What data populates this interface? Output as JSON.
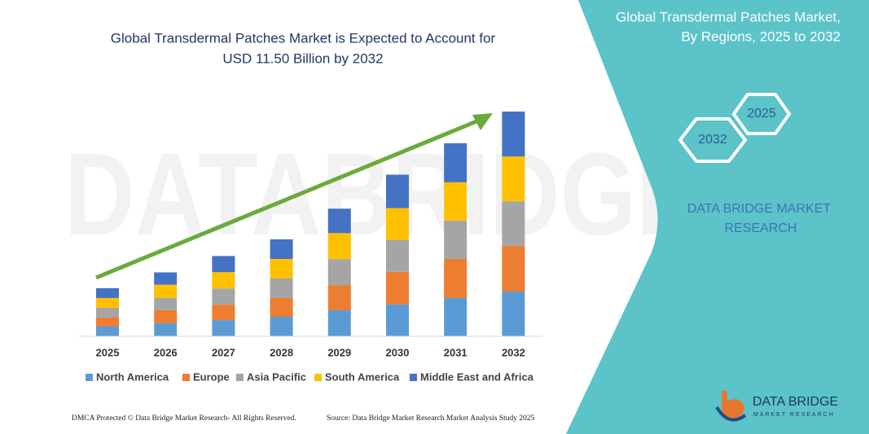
{
  "chart_data": {
    "type": "stacked-bar",
    "title": [
      "Global Transdermal Patches Market is Expected to Account for",
      "USD 11.50 Billion by 2032"
    ],
    "categories": [
      "2025",
      "2026",
      "2027",
      "2028",
      "2029",
      "2030",
      "2031",
      "2032"
    ],
    "series": [
      {
        "name": "North America",
        "color": "#5b9bd5",
        "values": [
          0.5,
          0.67,
          0.83,
          1.0,
          1.33,
          1.63,
          1.96,
          2.29
        ]
      },
      {
        "name": "Europe",
        "color": "#ed7d31",
        "values": [
          0.46,
          0.67,
          0.79,
          0.96,
          1.29,
          1.67,
          2.0,
          2.33
        ]
      },
      {
        "name": "Asia Pacific",
        "color": "#a5a5a5",
        "values": [
          0.5,
          0.63,
          0.83,
          1.0,
          1.33,
          1.63,
          1.96,
          2.29
        ]
      },
      {
        "name": "South America",
        "color": "#ffc000",
        "values": [
          0.5,
          0.67,
          0.83,
          1.0,
          1.33,
          1.63,
          1.96,
          2.29
        ]
      },
      {
        "name": "Middle East and Africa",
        "color": "#4472c4",
        "values": [
          0.5,
          0.63,
          0.83,
          1.0,
          1.25,
          1.71,
          2.0,
          2.3
        ]
      }
    ]
  },
  "panel": {
    "title": [
      "Global Transdermal Patches Market,",
      "By Regions, 2025 to 2032"
    ],
    "badges": [
      "2032",
      "2025"
    ],
    "brand": [
      "DATA BRIDGE MARKET",
      "RESEARCH"
    ],
    "logo": [
      "DATA BRIDGE",
      "MARKET RESEARCH"
    ]
  },
  "footer": {
    "left": "DMCA Protected © Data Bridge Market Research- All Rights Reserved.",
    "right": "Source: Data Bridge Market Research Market Analysis Study 2025"
  }
}
